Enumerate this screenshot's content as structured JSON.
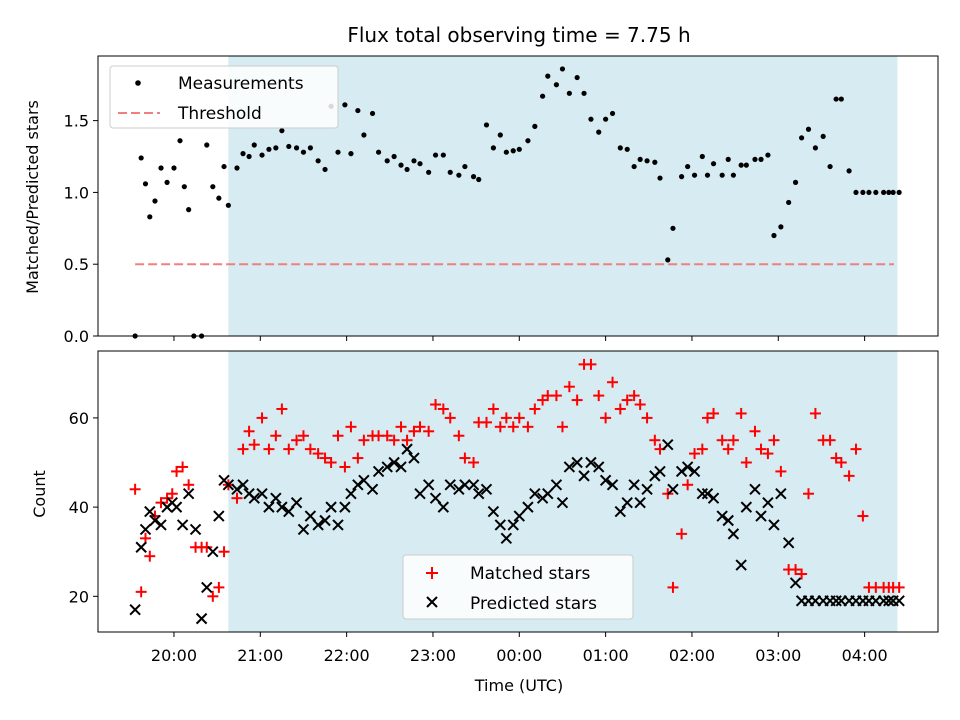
{
  "chart_data": {
    "title": "Flux total observing time = 7.75 h",
    "xlabel": "Time (UTC)",
    "x_ticks": [
      "20:00",
      "21:00",
      "22:00",
      "23:00",
      "00:00",
      "01:00",
      "02:00",
      "03:00",
      "04:00"
    ],
    "x_tick_hours": [
      20,
      21,
      22,
      23,
      24,
      25,
      26,
      27,
      28
    ],
    "x_range_hours": [
      19.12,
      28.85
    ],
    "shaded_span_hours": [
      20.63,
      28.38
    ],
    "shade_color": "#add8e6",
    "panels": [
      {
        "type": "scatter",
        "ylabel": "Matched/Predicted stars",
        "ylim": [
          0.0,
          1.95
        ],
        "y_ticks": [
          0.0,
          0.5,
          1.0,
          1.5
        ],
        "y_tick_labels": [
          "0.0",
          "0.5",
          "1.0",
          "1.5"
        ],
        "legend": [
          "Measurements",
          "Threshold"
        ],
        "legend_position": "upper left",
        "threshold": {
          "name": "Threshold",
          "value": 0.5,
          "x_range_hours": [
            19.55,
            28.34
          ],
          "color": "#f08080",
          "style": "dashed"
        },
        "series": [
          {
            "name": "Measurements",
            "color": "#000000",
            "marker": "dot",
            "x": [
              19.55,
              19.62,
              19.67,
              19.72,
              19.78,
              19.85,
              19.92,
              20.0,
              20.07,
              20.12,
              20.17,
              20.23,
              20.32,
              20.38,
              20.45,
              20.52,
              20.58,
              20.63,
              20.73,
              20.8,
              20.87,
              20.93,
              21.02,
              21.1,
              21.18,
              21.25,
              21.33,
              21.42,
              21.5,
              21.58,
              21.67,
              21.75,
              21.82,
              21.9,
              21.98,
              22.05,
              22.13,
              22.2,
              22.3,
              22.37,
              22.47,
              22.55,
              22.63,
              22.7,
              22.78,
              22.85,
              22.95,
              23.03,
              23.12,
              23.2,
              23.3,
              23.37,
              23.47,
              23.53,
              23.62,
              23.7,
              23.78,
              23.85,
              23.93,
              24.0,
              24.1,
              24.18,
              24.27,
              24.33,
              24.43,
              24.5,
              24.58,
              24.67,
              24.75,
              24.83,
              24.92,
              25.0,
              25.08,
              25.17,
              25.25,
              25.33,
              25.4,
              25.48,
              25.57,
              25.63,
              25.72,
              25.78,
              25.88,
              25.95,
              26.03,
              26.12,
              26.18,
              26.25,
              26.35,
              26.42,
              26.48,
              26.57,
              26.63,
              26.73,
              26.8,
              26.88,
              26.95,
              27.03,
              27.12,
              27.2,
              27.27,
              27.35,
              27.43,
              27.52,
              27.6,
              27.67,
              27.73,
              27.82,
              27.9,
              27.98,
              28.05,
              28.13,
              28.22,
              28.28,
              28.33,
              28.4
            ],
            "y": [
              0.0,
              1.24,
              1.06,
              0.83,
              0.94,
              1.17,
              1.07,
              1.17,
              1.36,
              1.04,
              0.88,
              0.0,
              0.0,
              1.33,
              1.04,
              0.96,
              1.18,
              0.91,
              1.17,
              1.27,
              1.25,
              1.33,
              1.26,
              1.3,
              1.31,
              1.43,
              1.32,
              1.31,
              1.28,
              1.31,
              1.22,
              1.16,
              1.6,
              1.28,
              1.61,
              1.27,
              1.57,
              1.4,
              1.55,
              1.28,
              1.22,
              1.25,
              1.19,
              1.16,
              1.22,
              1.2,
              1.14,
              1.26,
              1.26,
              1.14,
              1.12,
              1.18,
              1.11,
              1.09,
              1.47,
              1.31,
              1.4,
              1.28,
              1.29,
              1.3,
              1.36,
              1.46,
              1.67,
              1.81,
              1.75,
              1.86,
              1.69,
              1.8,
              1.69,
              1.51,
              1.42,
              1.51,
              1.55,
              1.31,
              1.3,
              1.18,
              1.23,
              1.22,
              1.21,
              1.1,
              0.53,
              0.75,
              1.11,
              1.18,
              1.12,
              1.25,
              1.12,
              1.2,
              1.12,
              1.23,
              1.12,
              1.19,
              1.19,
              1.23,
              1.23,
              1.26,
              0.7,
              0.76,
              0.93,
              1.07,
              1.38,
              1.44,
              1.31,
              1.39,
              1.18,
              1.65,
              1.65,
              1.15,
              1.0,
              1.0,
              1.0,
              1.0,
              1.0,
              1.0,
              1.0,
              1.0
            ]
          }
        ]
      },
      {
        "type": "scatter",
        "ylabel": "Count",
        "ylim": [
          12,
          75
        ],
        "y_ticks": [
          20,
          40,
          60
        ],
        "y_tick_labels": [
          "20",
          "40",
          "60"
        ],
        "legend": [
          "Matched stars",
          "Predicted stars"
        ],
        "legend_position": "lower center",
        "series": [
          {
            "name": "Matched stars",
            "color": "#ff0000",
            "marker": "plus",
            "x": [
              19.55,
              19.62,
              19.67,
              19.72,
              19.78,
              19.85,
              19.92,
              19.98,
              20.03,
              20.1,
              20.17,
              20.25,
              20.32,
              20.38,
              20.45,
              20.52,
              20.58,
              20.63,
              20.73,
              20.8,
              20.87,
              20.93,
              21.02,
              21.1,
              21.18,
              21.25,
              21.33,
              21.42,
              21.5,
              21.58,
              21.67,
              21.75,
              21.82,
              21.9,
              21.98,
              22.05,
              22.13,
              22.2,
              22.3,
              22.37,
              22.47,
              22.55,
              22.63,
              22.7,
              22.78,
              22.85,
              22.95,
              23.03,
              23.12,
              23.2,
              23.3,
              23.37,
              23.47,
              23.53,
              23.62,
              23.7,
              23.78,
              23.85,
              23.93,
              24.0,
              24.1,
              24.18,
              24.27,
              24.33,
              24.43,
              24.5,
              24.58,
              24.67,
              24.75,
              24.83,
              24.92,
              25.0,
              25.08,
              25.17,
              25.25,
              25.33,
              25.4,
              25.48,
              25.57,
              25.63,
              25.72,
              25.78,
              25.88,
              25.95,
              26.03,
              26.12,
              26.18,
              26.25,
              26.35,
              26.42,
              26.48,
              26.57,
              26.63,
              26.73,
              26.8,
              26.88,
              26.95,
              27.03,
              27.12,
              27.2,
              27.27,
              27.35,
              27.43,
              27.52,
              27.6,
              27.67,
              27.73,
              27.82,
              27.9,
              27.98,
              28.05,
              28.13,
              28.22,
              28.28,
              28.33,
              28.4
            ],
            "y": [
              44,
              21,
              33,
              29,
              38,
              41,
              42,
              43,
              48,
              49,
              45,
              31,
              31,
              31,
              20,
              22,
              30,
              45,
              42,
              53,
              57,
              54,
              60,
              53,
              56,
              62,
              53,
              55,
              56,
              53,
              52,
              51,
              50,
              56,
              49,
              58,
              51,
              55,
              56,
              56,
              56,
              55,
              58,
              55,
              57,
              58,
              57,
              63,
              62,
              60,
              56,
              51,
              50,
              59,
              59,
              62,
              58,
              60,
              58,
              60,
              58,
              62,
              64,
              65,
              65,
              58,
              67,
              64,
              72,
              72,
              65,
              60,
              68,
              62,
              64,
              65,
              63,
              60,
              55,
              53,
              43,
              22,
              34,
              45,
              52,
              53,
              60,
              61,
              55,
              53,
              55,
              61,
              50,
              57,
              53,
              52,
              55,
              48,
              26,
              26,
              25,
              43,
              61,
              55,
              55,
              51,
              50,
              47,
              53,
              38,
              22,
              22,
              22,
              22,
              22,
              22
            ]
          },
          {
            "name": "Predicted stars",
            "color": "#000000",
            "marker": "x",
            "x": [
              19.55,
              19.62,
              19.67,
              19.72,
              19.78,
              19.85,
              19.92,
              19.98,
              20.03,
              20.1,
              20.17,
              20.25,
              20.32,
              20.38,
              20.45,
              20.52,
              20.58,
              20.63,
              20.73,
              20.8,
              20.87,
              20.93,
              21.02,
              21.1,
              21.18,
              21.25,
              21.33,
              21.42,
              21.5,
              21.58,
              21.67,
              21.75,
              21.82,
              21.9,
              21.98,
              22.05,
              22.13,
              22.2,
              22.3,
              22.37,
              22.47,
              22.55,
              22.63,
              22.7,
              22.78,
              22.85,
              22.95,
              23.03,
              23.12,
              23.2,
              23.3,
              23.37,
              23.47,
              23.53,
              23.62,
              23.7,
              23.78,
              23.85,
              23.93,
              24.0,
              24.1,
              24.18,
              24.27,
              24.33,
              24.43,
              24.5,
              24.58,
              24.67,
              24.75,
              24.83,
              24.92,
              25.0,
              25.08,
              25.17,
              25.25,
              25.33,
              25.4,
              25.48,
              25.57,
              25.63,
              25.72,
              25.78,
              25.88,
              25.95,
              26.03,
              26.12,
              26.18,
              26.25,
              26.35,
              26.42,
              26.48,
              26.57,
              26.63,
              26.73,
              26.8,
              26.88,
              26.95,
              27.03,
              27.12,
              27.2,
              27.27,
              27.35,
              27.43,
              27.52,
              27.6,
              27.67,
              27.73,
              27.82,
              27.9,
              27.98,
              28.05,
              28.13,
              28.22,
              28.28,
              28.33,
              28.4
            ],
            "y": [
              17,
              31,
              35,
              39,
              37,
              36,
              40,
              41,
              40,
              36,
              43,
              35,
              15,
              22,
              30,
              38,
              46,
              45,
              44,
              45,
              43,
              42,
              43,
              40,
              42,
              40,
              39,
              41,
              35,
              38,
              36,
              37,
              40,
              36,
              40,
              43,
              45,
              46,
              44,
              48,
              49,
              50,
              49,
              53,
              51,
              43,
              45,
              42,
              40,
              45,
              44,
              45,
              45,
              43,
              44,
              39,
              36,
              33,
              36,
              38,
              40,
              43,
              42,
              43,
              45,
              41,
              49,
              50,
              47,
              50,
              49,
              46,
              45,
              39,
              41,
              45,
              41,
              44,
              47,
              48,
              54,
              44,
              48,
              49,
              48,
              43,
              43,
              42,
              38,
              37,
              34,
              27,
              40,
              44,
              38,
              41,
              36,
              43,
              32,
              23,
              19,
              19,
              19,
              19,
              19,
              19,
              19,
              19,
              19,
              19,
              19,
              19,
              19,
              19,
              19,
              19
            ]
          }
        ]
      }
    ]
  }
}
